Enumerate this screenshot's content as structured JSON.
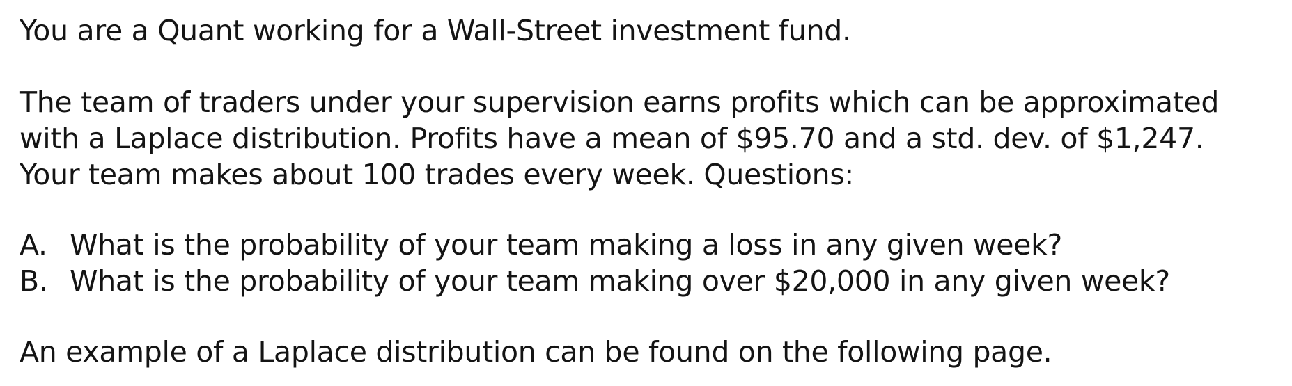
{
  "intro": "You are a Quant working for a Wall-Street investment fund.",
  "body_lines": [
    "The team of traders under your supervision earns profits which can be approximated",
    "with a Laplace distribution. Profits have a mean of $95.70 and a std. dev. of $1,247.",
    "Your team makes about 100 trades every week. Questions:"
  ],
  "questions": [
    {
      "marker": "A.",
      "text": "What is the probability of your team making a loss in any given week?"
    },
    {
      "marker": "B.",
      "text": "What is the probability of your team making over $20,000 in any given week?"
    }
  ],
  "closing": "An example of a Laplace distribution can be found on the following page."
}
